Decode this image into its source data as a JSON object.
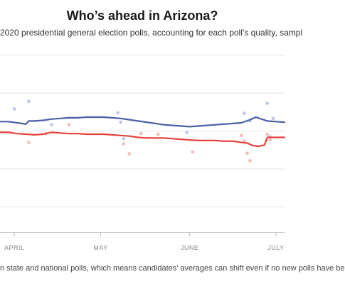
{
  "header": {
    "title": "Who’s ahead in Arizona?",
    "subtitle": "2020 presidential general election polls, accounting for each poll’s quality, sampl"
  },
  "footer": {
    "note": "n state and national polls, which means candidates’ averages can shift even if no new polls have be"
  },
  "colors": {
    "biden": "#4a5fa6",
    "trump": "#e8413c",
    "biden_dot": "#b9c2e6",
    "trump_dot": "#f3b8b5",
    "grid": "#e6e6e6"
  },
  "chart_data": {
    "type": "line",
    "title": "Who’s ahead in Arizona?",
    "x_ticks": [
      {
        "label": "APRIL",
        "day": 2
      },
      {
        "label": "MAY",
        "day": 32
      },
      {
        "label": "JUNE",
        "day": 63
      },
      {
        "label": "JULY",
        "day": 93
      }
    ],
    "xlim": [
      -3,
      96
    ],
    "ylim": [
      30,
      60
    ],
    "y_gridlines": [
      34,
      40,
      46,
      52,
      58
    ],
    "grid": true,
    "series": [
      {
        "color_key": "biden",
        "x": [
          -3,
          0,
          3,
          6,
          7,
          9,
          12,
          15,
          18,
          21,
          24,
          27,
          30,
          33,
          36,
          39,
          42,
          45,
          48,
          51,
          54,
          57,
          60,
          63,
          66,
          69,
          72,
          75,
          78,
          81,
          84,
          86,
          88,
          90,
          93,
          96
        ],
        "values": [
          47.5,
          47.5,
          47.3,
          47.1,
          47.6,
          47.6,
          47.7,
          47.9,
          48.0,
          48.1,
          48.1,
          48.2,
          48.2,
          48.2,
          48.1,
          48.0,
          47.8,
          47.6,
          47.4,
          47.2,
          47.0,
          46.9,
          46.8,
          46.7,
          46.8,
          46.9,
          47.0,
          47.1,
          47.2,
          47.3,
          47.8,
          48.2,
          47.9,
          47.6,
          47.5,
          47.4
        ]
      },
      {
        "color_key": "trump",
        "x": [
          -3,
          0,
          3,
          6,
          9,
          12,
          15,
          18,
          21,
          24,
          27,
          30,
          33,
          36,
          39,
          42,
          45,
          48,
          51,
          54,
          57,
          60,
          63,
          66,
          69,
          72,
          75,
          78,
          81,
          83,
          85,
          87,
          89,
          90,
          93,
          96
        ],
        "values": [
          45.8,
          45.8,
          45.6,
          45.5,
          45.4,
          45.5,
          45.8,
          45.7,
          45.6,
          45.6,
          45.5,
          45.5,
          45.5,
          45.4,
          45.3,
          45.2,
          45.0,
          44.9,
          44.9,
          44.9,
          44.8,
          44.7,
          44.6,
          44.5,
          44.5,
          44.5,
          44.4,
          44.4,
          44.2,
          44.1,
          43.7,
          43.6,
          43.8,
          45.0,
          45.0,
          45.0
        ]
      }
    ],
    "poll_dots": [
      {
        "color_key": "biden_dot",
        "x": 2,
        "y": 49.5
      },
      {
        "color_key": "biden_dot",
        "x": 7,
        "y": 50.7
      },
      {
        "color_key": "biden_dot",
        "x": 15,
        "y": 47.0
      },
      {
        "color_key": "biden_dot",
        "x": 38,
        "y": 48.9
      },
      {
        "color_key": "biden_dot",
        "x": 39,
        "y": 47.4
      },
      {
        "color_key": "biden_dot",
        "x": 40,
        "y": 44.8
      },
      {
        "color_key": "biden_dot",
        "x": 62,
        "y": 45.8
      },
      {
        "color_key": "biden_dot",
        "x": 82,
        "y": 48.8
      },
      {
        "color_key": "biden_dot",
        "x": 84,
        "y": 47.6
      },
      {
        "color_key": "biden_dot",
        "x": 90,
        "y": 50.4
      },
      {
        "color_key": "biden_dot",
        "x": 91,
        "y": 45.1
      },
      {
        "color_key": "biden_dot",
        "x": 92,
        "y": 48.0
      },
      {
        "color_key": "trump_dot",
        "x": 7,
        "y": 44.2
      },
      {
        "color_key": "trump_dot",
        "x": 13,
        "y": 45.6
      },
      {
        "color_key": "trump_dot",
        "x": 21,
        "y": 47.0
      },
      {
        "color_key": "trump_dot",
        "x": 40,
        "y": 44.0
      },
      {
        "color_key": "trump_dot",
        "x": 42,
        "y": 42.4
      },
      {
        "color_key": "trump_dot",
        "x": 46,
        "y": 45.6
      },
      {
        "color_key": "trump_dot",
        "x": 52,
        "y": 45.5
      },
      {
        "color_key": "trump_dot",
        "x": 64,
        "y": 42.7
      },
      {
        "color_key": "trump_dot",
        "x": 81,
        "y": 45.3
      },
      {
        "color_key": "trump_dot",
        "x": 82,
        "y": 44.4
      },
      {
        "color_key": "trump_dot",
        "x": 83,
        "y": 42.5
      },
      {
        "color_key": "trump_dot",
        "x": 84,
        "y": 41.3
      },
      {
        "color_key": "trump_dot",
        "x": 90,
        "y": 45.5
      },
      {
        "color_key": "trump_dot",
        "x": 91,
        "y": 44.6
      }
    ]
  }
}
